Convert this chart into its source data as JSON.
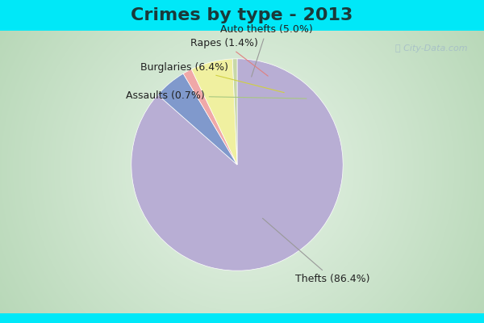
{
  "title": "Crimes by type - 2013",
  "labels": [
    "Thefts",
    "Auto thefts",
    "Rapes",
    "Burglaries",
    "Assaults"
  ],
  "values": [
    86.4,
    5.0,
    1.4,
    6.4,
    0.7
  ],
  "colors": [
    "#b8aed4",
    "#8099cc",
    "#f0a8a8",
    "#f0f0a0",
    "#c8d8a8"
  ],
  "background_color": "#c8e8c8",
  "top_bar_color": "#00e8f8",
  "bottom_bar_color": "#00e8f8",
  "title_color": "#1a3a3a",
  "title_fontsize": 16,
  "label_fontsize": 9,
  "watermark": "ⓘ City-Data.com"
}
